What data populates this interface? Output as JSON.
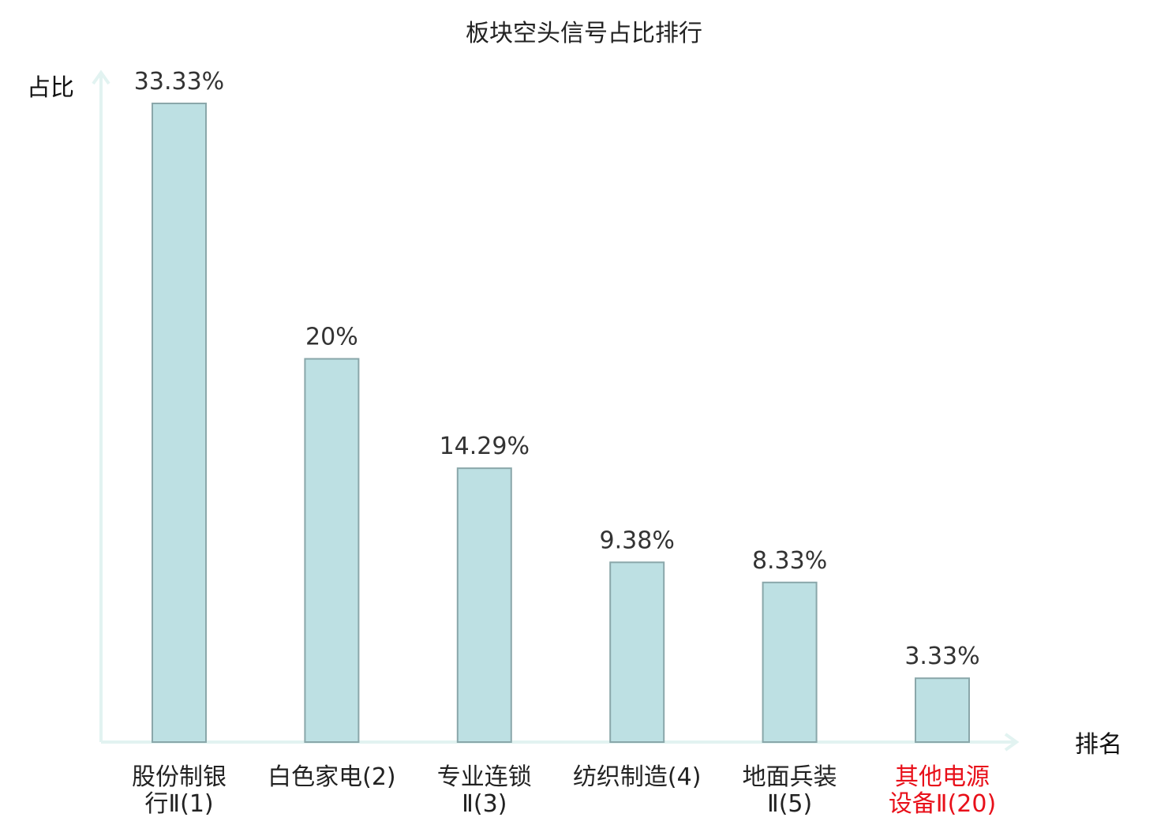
{
  "chart_data": {
    "type": "bar",
    "title": "板块空头信号占比排行",
    "ylabel": "占比",
    "xlabel": "排名",
    "ylim": [
      0,
      33.33
    ],
    "grid": false,
    "bar_color": "#bde0e3",
    "bar_edge_color": "#8aa7aa",
    "axis_color": "#e2f3f1",
    "highlight_color": "#e8101a",
    "categories": [
      {
        "name_lines": [
          "股份制银",
          "行Ⅱ(1)"
        ],
        "highlight": false
      },
      {
        "name_lines": [
          "白色家电(2)"
        ],
        "highlight": false
      },
      {
        "name_lines": [
          "专业连锁",
          "Ⅱ(3)"
        ],
        "highlight": false
      },
      {
        "name_lines": [
          "纺织制造(4)"
        ],
        "highlight": false
      },
      {
        "name_lines": [
          "地面兵装",
          "Ⅱ(5)"
        ],
        "highlight": false
      },
      {
        "name_lines": [
          "其他电源",
          "设备Ⅱ(20)"
        ],
        "highlight": true
      }
    ],
    "values": [
      33.33,
      20,
      14.29,
      9.38,
      8.33,
      3.33
    ],
    "value_labels": [
      "33.33%",
      "20%",
      "14.29%",
      "9.38%",
      "8.33%",
      "3.33%"
    ]
  }
}
